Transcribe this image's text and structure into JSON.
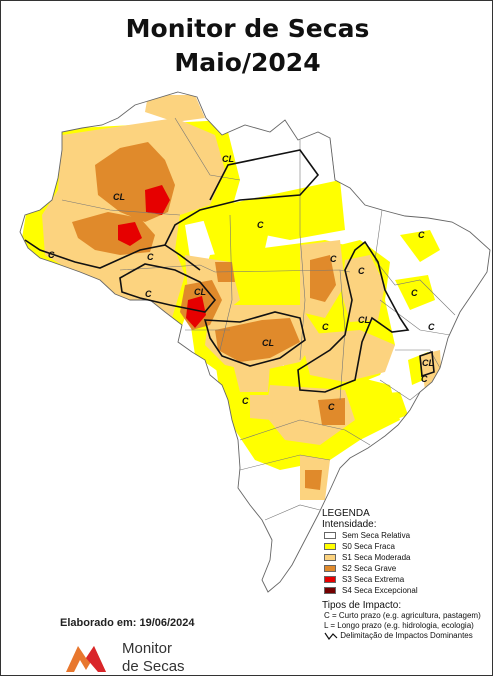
{
  "title": {
    "line1": "Monitor de Secas",
    "line2": "Maio/2024"
  },
  "colors": {
    "S0": "#ffff00",
    "S1": "#fcd37f",
    "S2": "#e08a2b",
    "S3": "#e60000",
    "S4": "#730000",
    "none": "#ffffff"
  },
  "legend": {
    "title": "LEGENDA",
    "intensity_title": "Intensidade:",
    "items": [
      {
        "label": "Sem Seca Relativa",
        "color": "#ffffff"
      },
      {
        "label": "S0 Seca Fraca",
        "color": "#ffff00"
      },
      {
        "label": "S1 Seca Moderada",
        "color": "#fcd37f"
      },
      {
        "label": "S2 Seca Grave",
        "color": "#e08a2b"
      },
      {
        "label": "S3 Seca Extrema",
        "color": "#e60000"
      },
      {
        "label": "S4 Seca Excepcional",
        "color": "#730000"
      }
    ],
    "impact_title": "Tipos de Impacto:",
    "impact_c": "C = Curto prazo (e.g. agricultura, pastagem)",
    "impact_l": "L = Longo prazo (e.g. hidrologia, ecologia)",
    "impact_line": "Delimitação de Impactos Dominantes"
  },
  "map_labels": [
    "CL",
    "CL",
    "C",
    "C",
    "C",
    "CL",
    "CL",
    "CL",
    "C",
    "C",
    "C",
    "C",
    "C",
    "C",
    "C",
    "CL",
    "C",
    "C",
    "C"
  ],
  "credit": "Elaborado em: 19/06/2024",
  "logo": {
    "line1": "Monitor",
    "line2": "de Secas"
  }
}
